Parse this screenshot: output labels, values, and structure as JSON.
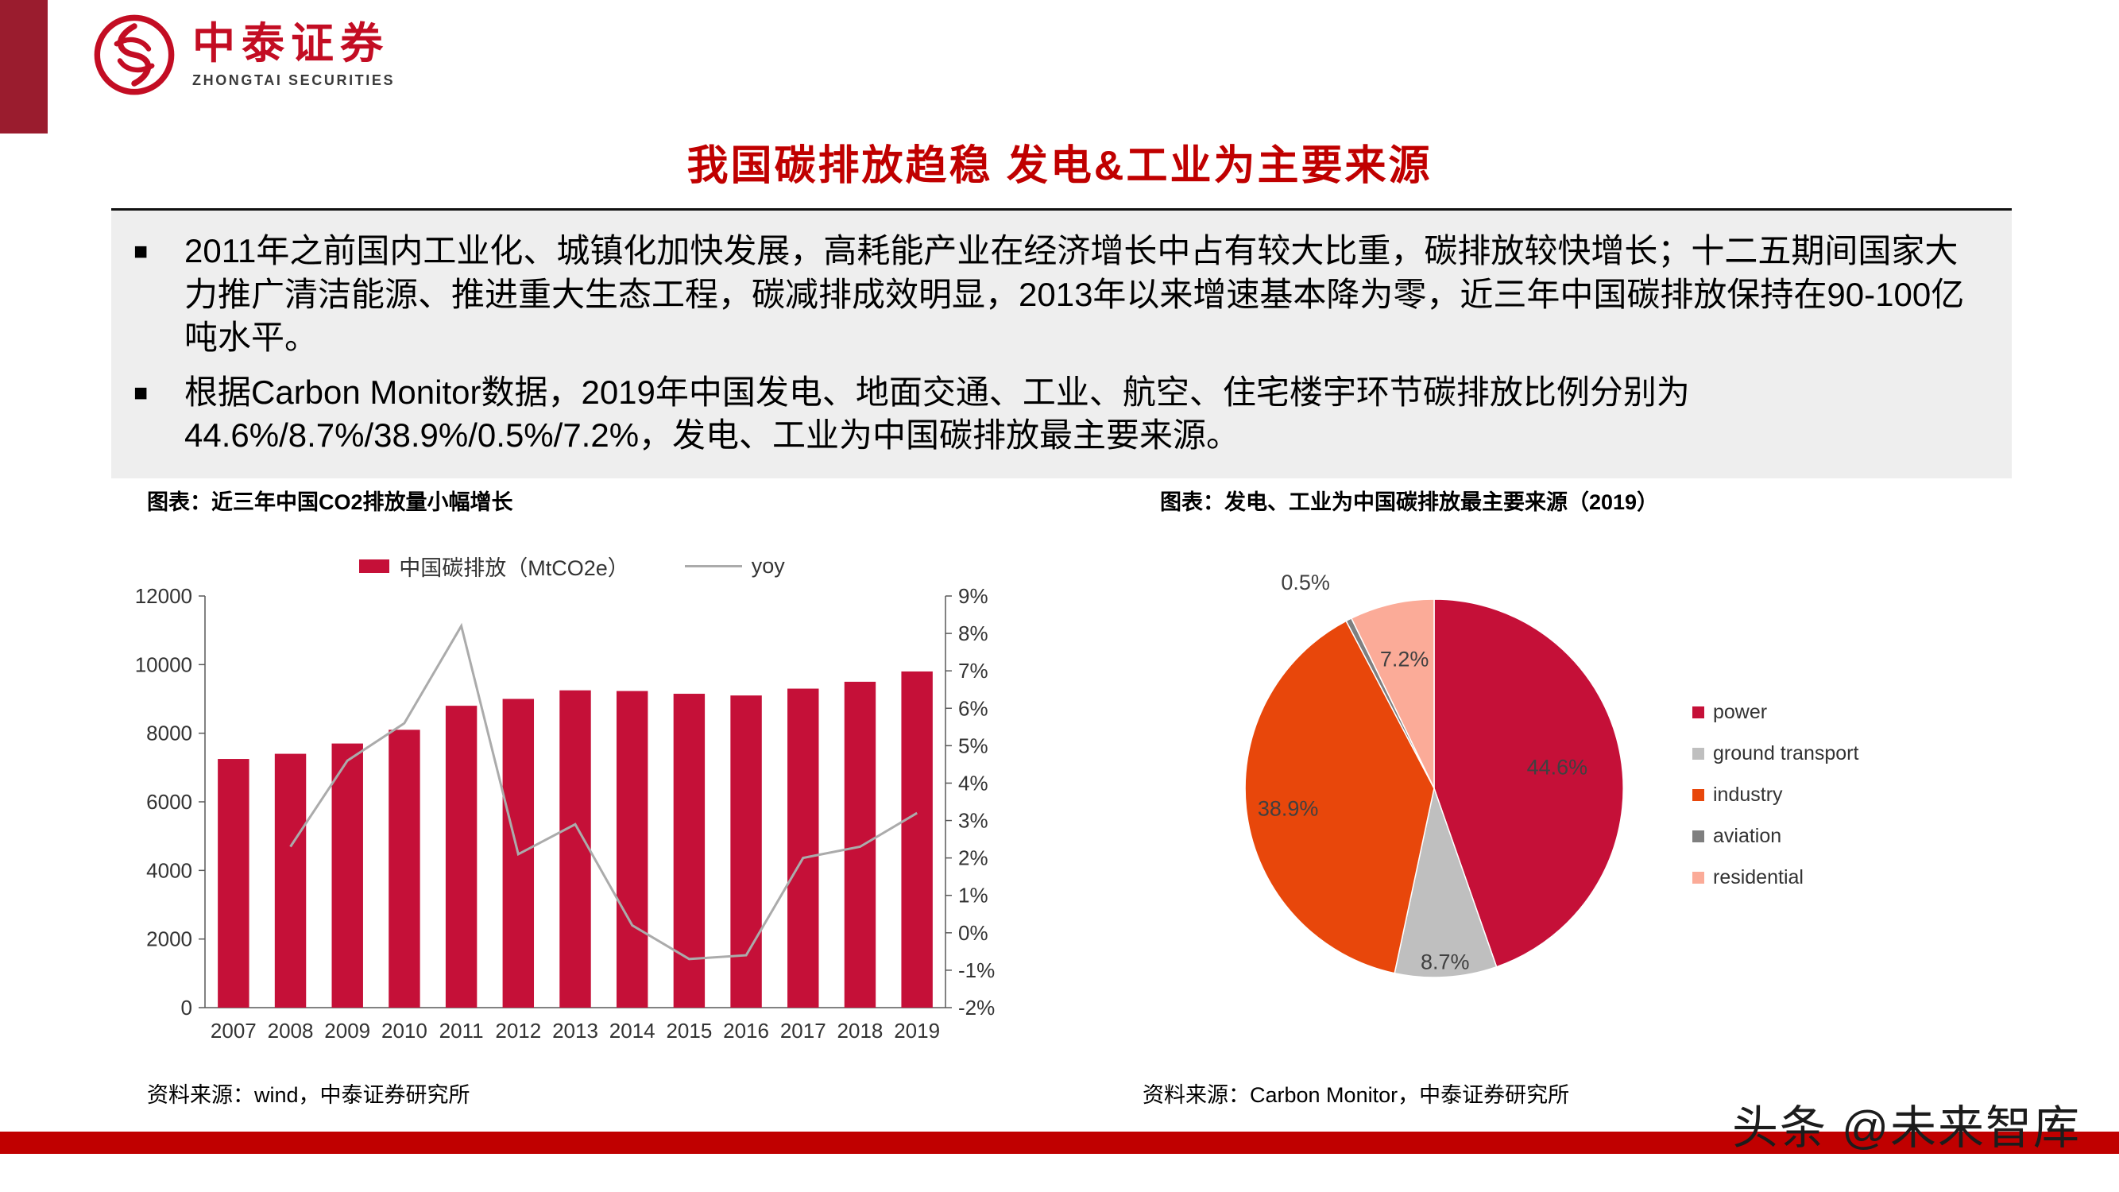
{
  "colors": {
    "brand_red": "#C30D23",
    "title_red": "#C00000",
    "bar_red": "#C51038",
    "industry_orange": "#E8470B",
    "residential_pink": "#FBAB98",
    "transport_gray": "#BFBFBF",
    "aviation_gray": "#7F7F7F",
    "line_gray": "#ABABAB",
    "summary_bg": "#EEEEEE"
  },
  "brand": {
    "logo_text": "中泰证券",
    "logo_subtext": "ZHONGTAI SECURITIES"
  },
  "page": {
    "title": "我国碳排放趋稳 发电&工业为主要来源",
    "watermark": "头条 @未来智库"
  },
  "summary": {
    "bullet_marker": "■",
    "bullets": [
      "2011年之前国内工业化、城镇化加快发展，高耗能产业在经济增长中占有较大比重，碳排放较快增长；十二五期间国家大力推广清洁能源、推进重大生态工程，碳减排成效明显，2013年以来增速基本降为零，近三年中国碳排放保持在90-100亿吨水平。",
      "根据Carbon Monitor数据，2019年中国发电、地面交通、工业、航空、住宅楼宇环节碳排放比例分别为44.6%/8.7%/38.9%/0.5%/7.2%，发电、工业为中国碳排放最主要来源。"
    ]
  },
  "left_chart": {
    "title": "图表：近三年中国CO2排放量小幅增长",
    "source": "资料来源：wind，中泰证券研究所"
  },
  "right_chart": {
    "title": "图表：发电、工业为中国碳排放最主要来源（2019）",
    "source": "资料来源：Carbon Monitor，中泰证券研究所"
  },
  "chart_data": [
    {
      "type": "bar",
      "title": "近三年中国CO2排放量小幅增长",
      "categories": [
        "2007",
        "2008",
        "2009",
        "2010",
        "2011",
        "2012",
        "2013",
        "2014",
        "2015",
        "2016",
        "2017",
        "2018",
        "2019"
      ],
      "series": [
        {
          "name": "中国碳排放（MtCO2e）",
          "chart": "bar",
          "axis": "left",
          "color": "#C51038",
          "values": [
            7250,
            7400,
            7700,
            8100,
            8800,
            9000,
            9250,
            9230,
            9150,
            9100,
            9300,
            9500,
            9800
          ]
        },
        {
          "name": "yoy",
          "chart": "line",
          "axis": "right",
          "color": "#ABABAB",
          "values": [
            null,
            2.3,
            4.6,
            5.6,
            8.2,
            2.1,
            2.9,
            0.2,
            -0.7,
            -0.6,
            2.0,
            2.3,
            3.2
          ]
        }
      ],
      "left_axis": {
        "min": 0,
        "max": 12000,
        "step": 2000
      },
      "right_axis": {
        "min": -2,
        "max": 9,
        "step": 1,
        "unit": "%"
      },
      "grid": false,
      "legend_position": "top"
    },
    {
      "type": "pie",
      "title": "发电、工业为中国碳排放最主要来源（2019）",
      "slices": [
        {
          "label": "power",
          "value": 44.6,
          "pct_label": "44.6%",
          "color": "#C51038"
        },
        {
          "label": "ground transport",
          "value": 8.7,
          "pct_label": "8.7%",
          "color": "#BFBFBF"
        },
        {
          "label": "industry",
          "value": 38.9,
          "pct_label": "38.9%",
          "color": "#E8470B"
        },
        {
          "label": "aviation",
          "value": 0.5,
          "pct_label": "0.5%",
          "color": "#7F7F7F"
        },
        {
          "label": "residential",
          "value": 7.2,
          "pct_label": "7.2%",
          "color": "#FBAB98"
        }
      ],
      "legend_position": "right",
      "start_angle_deg": -90,
      "direction": "clockwise"
    }
  ]
}
